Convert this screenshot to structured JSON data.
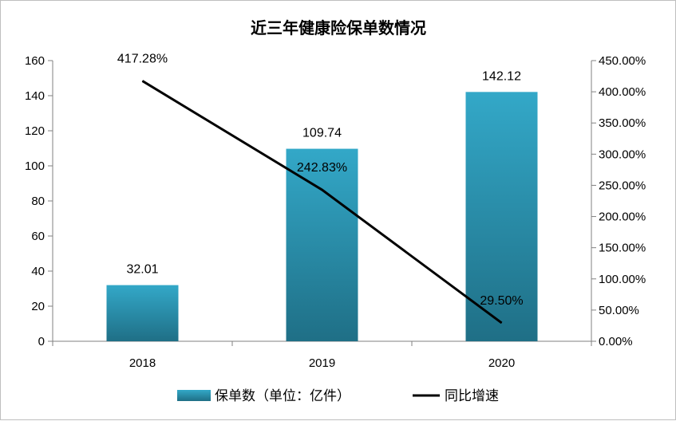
{
  "chart_data": {
    "type": "bar",
    "title": "近三年健康险保单数情况",
    "categories": [
      "2018",
      "2019",
      "2020"
    ],
    "series": [
      {
        "name": "保单数（单位：亿件）",
        "type": "bar",
        "axis": "left",
        "values": [
          32.01,
          109.74,
          142.12
        ],
        "labels": [
          "32.01",
          "109.74",
          "142.12"
        ],
        "color": "#2e97b4"
      },
      {
        "name": "同比增速",
        "type": "line",
        "axis": "right",
        "values": [
          417.28,
          242.83,
          29.5
        ],
        "labels": [
          "417.28%",
          "242.83%",
          "29.50%"
        ],
        "color": "#000000"
      }
    ],
    "y_left": {
      "min": 0,
      "max": 160,
      "ticks": [
        "0",
        "20",
        "40",
        "60",
        "80",
        "100",
        "120",
        "140",
        "160"
      ]
    },
    "y_right": {
      "min": 0,
      "max": 450,
      "ticks": [
        "0.00%",
        "50.00%",
        "100.00%",
        "150.00%",
        "200.00%",
        "250.00%",
        "300.00%",
        "350.00%",
        "400.00%",
        "450.00%"
      ]
    },
    "grid": false,
    "legend": "bottom"
  }
}
